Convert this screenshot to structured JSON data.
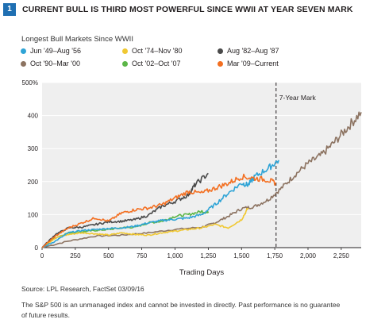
{
  "figure": {
    "number": "1",
    "title": "CURRENT BULL IS THIRD MOST POWERFUL SINCE WWII AT YEAR SEVEN MARK",
    "subtitle": "Longest Bull Markets Since WWII"
  },
  "chart_data": {
    "type": "line",
    "xlabel": "Trading Days",
    "ylabel": "",
    "xlim": [
      0,
      2400
    ],
    "ylim": [
      0,
      500
    ],
    "x_ticks": [
      0,
      250,
      500,
      750,
      1000,
      1250,
      1500,
      1750,
      2000,
      2250
    ],
    "x_tick_labels": [
      "0",
      "250",
      "500",
      "750",
      "1,000",
      "1,250",
      "1,500",
      "1,750",
      "2,000",
      "2,250"
    ],
    "y_ticks": [
      0,
      100,
      200,
      300,
      400,
      500
    ],
    "y_tick_labels": [
      "0",
      "100",
      "200",
      "300",
      "400",
      "500%"
    ],
    "grid": true,
    "legend_position": "top",
    "annotation": {
      "label": "7-Year Mark",
      "x": 1760
    },
    "series": [
      {
        "name": "Jun '49–Aug '56",
        "color": "#2fa4d6",
        "points": [
          [
            0,
            0
          ],
          [
            100,
            20
          ],
          [
            200,
            45
          ],
          [
            300,
            52
          ],
          [
            400,
            55
          ],
          [
            500,
            58
          ],
          [
            600,
            60
          ],
          [
            700,
            65
          ],
          [
            800,
            75
          ],
          [
            900,
            82
          ],
          [
            1000,
            86
          ],
          [
            1100,
            90
          ],
          [
            1200,
            100
          ],
          [
            1300,
            130
          ],
          [
            1400,
            165
          ],
          [
            1500,
            195
          ],
          [
            1550,
            190
          ],
          [
            1600,
            215
          ],
          [
            1700,
            240
          ],
          [
            1780,
            265
          ]
        ]
      },
      {
        "name": "Oct '74–Nov '80",
        "color": "#f0c832",
        "points": [
          [
            0,
            0
          ],
          [
            100,
            30
          ],
          [
            200,
            40
          ],
          [
            300,
            45
          ],
          [
            400,
            42
          ],
          [
            500,
            38
          ],
          [
            600,
            45
          ],
          [
            700,
            40
          ],
          [
            800,
            38
          ],
          [
            900,
            45
          ],
          [
            1000,
            50
          ],
          [
            1100,
            55
          ],
          [
            1200,
            60
          ],
          [
            1300,
            70
          ],
          [
            1400,
            60
          ],
          [
            1500,
            85
          ],
          [
            1550,
            120
          ]
        ]
      },
      {
        "name": "Aug '82–Aug '87",
        "color": "#4a4a4a",
        "points": [
          [
            0,
            0
          ],
          [
            100,
            40
          ],
          [
            200,
            60
          ],
          [
            300,
            62
          ],
          [
            400,
            70
          ],
          [
            500,
            78
          ],
          [
            600,
            80
          ],
          [
            700,
            85
          ],
          [
            800,
            98
          ],
          [
            900,
            125
          ],
          [
            1000,
            140
          ],
          [
            1100,
            160
          ],
          [
            1150,
            190
          ],
          [
            1250,
            225
          ]
        ]
      },
      {
        "name": "Oct '90–Mar '00",
        "color": "#8c7361",
        "points": [
          [
            0,
            0
          ],
          [
            200,
            20
          ],
          [
            400,
            35
          ],
          [
            600,
            38
          ],
          [
            800,
            45
          ],
          [
            1000,
            55
          ],
          [
            1200,
            62
          ],
          [
            1300,
            75
          ],
          [
            1400,
            95
          ],
          [
            1500,
            118
          ],
          [
            1600,
            125
          ],
          [
            1700,
            145
          ],
          [
            1800,
            180
          ],
          [
            1900,
            220
          ],
          [
            2000,
            255
          ],
          [
            2100,
            280
          ],
          [
            2200,
            320
          ],
          [
            2300,
            365
          ],
          [
            2400,
            410
          ]
        ]
      },
      {
        "name": "Oct '02–Oct '07",
        "color": "#5cb648",
        "points": [
          [
            0,
            0
          ],
          [
            100,
            30
          ],
          [
            200,
            45
          ],
          [
            300,
            48
          ],
          [
            400,
            52
          ],
          [
            500,
            55
          ],
          [
            600,
            60
          ],
          [
            700,
            62
          ],
          [
            800,
            75
          ],
          [
            900,
            80
          ],
          [
            1000,
            95
          ],
          [
            1100,
            100
          ],
          [
            1200,
            110
          ],
          [
            1250,
            105
          ]
        ]
      },
      {
        "name": "Mar '09–Current",
        "color": "#f36f21",
        "points": [
          [
            0,
            0
          ],
          [
            100,
            35
          ],
          [
            200,
            60
          ],
          [
            300,
            75
          ],
          [
            400,
            90
          ],
          [
            500,
            80
          ],
          [
            600,
            105
          ],
          [
            700,
            115
          ],
          [
            800,
            120
          ],
          [
            900,
            130
          ],
          [
            1000,
            150
          ],
          [
            1100,
            170
          ],
          [
            1200,
            165
          ],
          [
            1300,
            180
          ],
          [
            1400,
            195
          ],
          [
            1500,
            215
          ],
          [
            1600,
            210
          ],
          [
            1700,
            205
          ],
          [
            1760,
            195
          ]
        ]
      }
    ]
  },
  "footer": {
    "source": "Source: LPL Research, FactSet 03/09/16",
    "disclaimer_line1": "The S&P 500 is an unmanaged index and cannot be invested in directly. Past performance is no guarantee",
    "disclaimer_line2": "of future results."
  }
}
